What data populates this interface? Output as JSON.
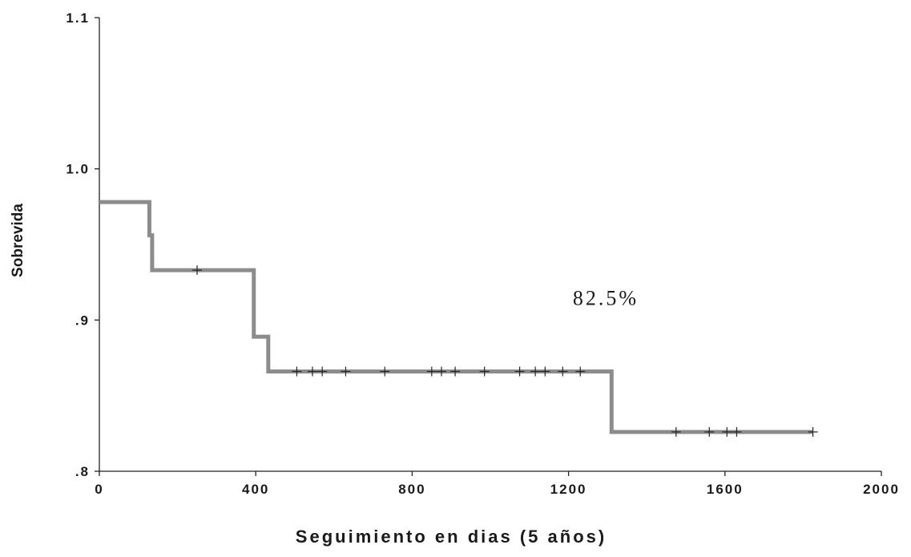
{
  "chart_data": {
    "type": "line",
    "title": "",
    "xlabel": "Seguimiento en dias (5 años)",
    "ylabel": "Sobrevida",
    "xlim": [
      0,
      2000
    ],
    "ylim": [
      0.8,
      1.1
    ],
    "x_ticks": [
      0,
      400,
      800,
      1200,
      1600,
      2000
    ],
    "x_tick_labels": [
      "0",
      "400",
      "800",
      "1200",
      "1600",
      "2000"
    ],
    "y_ticks": [
      0.8,
      0.9,
      1.0,
      1.1
    ],
    "y_tick_labels": [
      ".8",
      ".9",
      "1.0",
      "1.1"
    ],
    "grid": false,
    "legend": "none",
    "line_color": "#8c8c8c",
    "series": [
      {
        "step": true,
        "x": [
          0,
          128,
          135,
          395,
          432,
          1310,
          1825
        ],
        "y": [
          0.978,
          0.956,
          0.933,
          0.889,
          0.866,
          0.826,
          0.826
        ]
      }
    ],
    "censored_points": [
      {
        "x": 250,
        "y": 0.933
      },
      {
        "x": 505,
        "y": 0.866
      },
      {
        "x": 545,
        "y": 0.866
      },
      {
        "x": 570,
        "y": 0.866
      },
      {
        "x": 630,
        "y": 0.866
      },
      {
        "x": 730,
        "y": 0.866
      },
      {
        "x": 850,
        "y": 0.866
      },
      {
        "x": 875,
        "y": 0.866
      },
      {
        "x": 910,
        "y": 0.866
      },
      {
        "x": 985,
        "y": 0.866
      },
      {
        "x": 1075,
        "y": 0.866
      },
      {
        "x": 1115,
        "y": 0.866
      },
      {
        "x": 1140,
        "y": 0.866
      },
      {
        "x": 1185,
        "y": 0.866
      },
      {
        "x": 1230,
        "y": 0.866
      },
      {
        "x": 1475,
        "y": 0.826
      },
      {
        "x": 1560,
        "y": 0.826
      },
      {
        "x": 1605,
        "y": 0.826
      },
      {
        "x": 1630,
        "y": 0.826
      },
      {
        "x": 1825,
        "y": 0.826
      }
    ],
    "annotation": {
      "text": "82.5%",
      "x": 1295,
      "y": 0.91
    }
  }
}
